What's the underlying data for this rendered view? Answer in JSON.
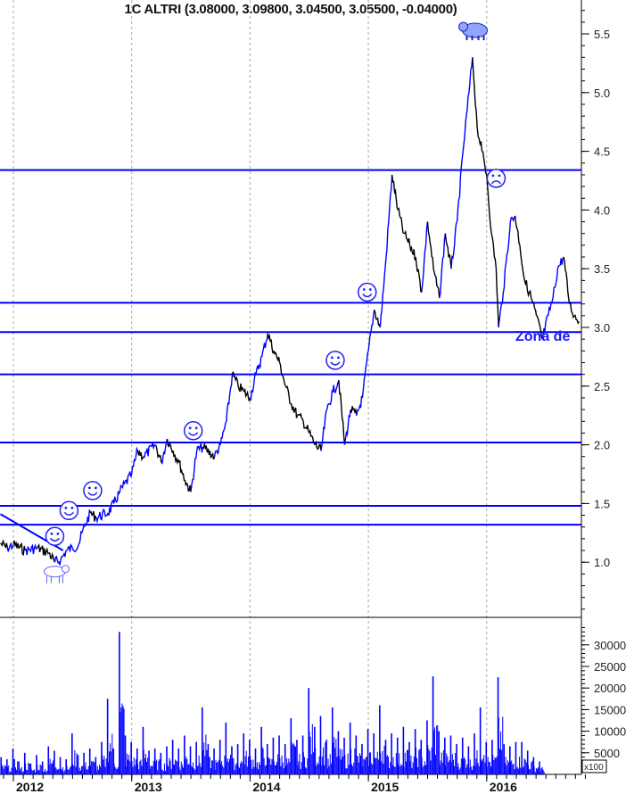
{
  "chart_data": [
    {
      "type": "line",
      "title": "1C ALTRI (3.08000, 3.09800, 3.04500, 3.05500, -0.04000)",
      "x_ticks": [
        "2012",
        "2013",
        "2014",
        "2015",
        "2016"
      ],
      "y_ticks": [
        "1.0",
        "1.5",
        "2.0",
        "2.5",
        "3.0",
        "3.5",
        "4.0",
        "4.5",
        "5.0",
        "5.5"
      ],
      "ylim": [
        0.5,
        5.8
      ],
      "grid": "vertical dashed at years",
      "colors": {
        "up": "#0000ff",
        "down": "#000000",
        "lines": "#0000ff"
      },
      "series": [
        {
          "x": [
            2011.89,
            2011.95,
            2012.0,
            2012.1,
            2012.2,
            2012.3,
            2012.35,
            2012.4,
            2012.45,
            2012.5,
            2012.55,
            2012.6,
            2012.65,
            2012.7,
            2012.8,
            2012.85,
            2012.9,
            2013.0,
            2013.05,
            2013.1,
            2013.2,
            2013.25,
            2013.3,
            2013.35,
            2013.4,
            2013.45,
            2013.5,
            2013.55,
            2013.6,
            2013.7,
            2013.75,
            2013.8,
            2013.85,
            2013.9,
            2013.95,
            2014.0,
            2014.05,
            2014.1,
            2014.15,
            2014.2,
            2014.25,
            2014.3,
            2014.35,
            2014.4,
            2014.45,
            2014.5,
            2014.55,
            2014.6,
            2014.65,
            2014.7,
            2014.75,
            2014.8,
            2014.85,
            2014.9,
            2014.95,
            2015.0,
            2015.05,
            2015.1,
            2015.15,
            2015.2,
            2015.25,
            2015.3,
            2015.35,
            2015.4,
            2015.45,
            2015.5,
            2015.55,
            2015.6,
            2015.65,
            2015.7,
            2015.75,
            2015.8,
            2015.85,
            2015.88,
            2015.92,
            2015.96,
            2016.0,
            2016.04,
            2016.08,
            2016.1,
            2016.14,
            2016.2,
            2016.24,
            2016.28,
            2016.32,
            2016.36,
            2016.42,
            2016.47,
            2016.52,
            2016.56,
            2016.6,
            2016.65,
            2016.7,
            2016.74,
            2016.78
          ],
          "y": [
            1.16,
            1.12,
            1.15,
            1.1,
            1.12,
            1.08,
            1.0,
            1.02,
            1.1,
            1.12,
            1.15,
            1.3,
            1.42,
            1.38,
            1.42,
            1.5,
            1.6,
            1.75,
            1.95,
            1.9,
            2.0,
            1.85,
            2.05,
            1.95,
            1.85,
            1.7,
            1.6,
            1.95,
            1.98,
            1.9,
            2.0,
            2.2,
            2.6,
            2.5,
            2.45,
            2.4,
            2.6,
            2.75,
            2.95,
            2.8,
            2.7,
            2.5,
            2.35,
            2.25,
            2.2,
            2.1,
            2.0,
            1.95,
            2.3,
            2.45,
            2.55,
            2.0,
            2.3,
            2.25,
            2.4,
            2.8,
            3.15,
            3.0,
            3.6,
            4.3,
            4.0,
            3.8,
            3.7,
            3.6,
            3.3,
            3.9,
            3.5,
            3.25,
            3.8,
            3.5,
            3.9,
            4.5,
            5.0,
            5.3,
            4.7,
            4.5,
            4.3,
            3.8,
            3.5,
            3.0,
            3.3,
            3.9,
            3.95,
            3.7,
            3.4,
            3.3,
            3.1,
            2.9,
            3.1,
            3.25,
            3.5,
            3.6,
            3.2,
            3.1,
            3.05
          ]
        }
      ],
      "horizontal_lines": [
        4.34,
        3.21,
        2.96,
        2.6,
        2.02,
        1.48,
        1.32
      ],
      "trendline": {
        "from": [
          2011.89,
          1.41
        ],
        "to": [
          2012.42,
          1.1
        ]
      },
      "annotations": {
        "text": "Zona de",
        "happy_faces": [
          [
            2012.35,
            1.22
          ],
          [
            2012.47,
            1.44
          ],
          [
            2012.67,
            1.61
          ],
          [
            2013.52,
            2.12
          ],
          [
            2014.72,
            2.72
          ],
          [
            2014.99,
            3.3
          ]
        ],
        "sad_faces": [
          [
            2016.08,
            4.27
          ]
        ],
        "bear": [
          2015.9,
          5.53
        ],
        "bull": [
          2012.35,
          0.92
        ]
      }
    },
    {
      "type": "bar",
      "y_ticks": [
        "5000",
        "10000",
        "15000",
        "20000",
        "25000",
        "30000"
      ],
      "unit": "x100",
      "ylim": [
        0,
        35000
      ],
      "x_start": 2011.89,
      "x_step": 0.05,
      "values": [
        4000,
        3500,
        6000,
        3000,
        5000,
        2500,
        4500,
        3000,
        6500,
        5500,
        4000,
        3500,
        9500,
        4500,
        5000,
        6000,
        4000,
        7500,
        17500,
        6000,
        33000,
        9000,
        7500,
        6000,
        11000,
        5500,
        6000,
        5000,
        6500,
        8000,
        6000,
        9000,
        6500,
        7500,
        15500,
        7000,
        6000,
        8000,
        12000,
        6500,
        7000,
        9500,
        8000,
        6000,
        11000,
        7000,
        8500,
        9000,
        7000,
        13000,
        8000,
        9000,
        20000,
        11000,
        13500,
        8000,
        15500,
        10000,
        8500,
        12000,
        9000,
        7000,
        10500,
        9500,
        16000,
        8000,
        9500,
        8500,
        11000,
        7500,
        10500,
        8000,
        12500,
        22700,
        10000,
        8500,
        9000,
        7000,
        8500,
        6500,
        9500,
        15500,
        7500,
        8000,
        22500,
        7000,
        6500,
        7500,
        7500,
        5500,
        4000,
        3000
      ]
    }
  ]
}
